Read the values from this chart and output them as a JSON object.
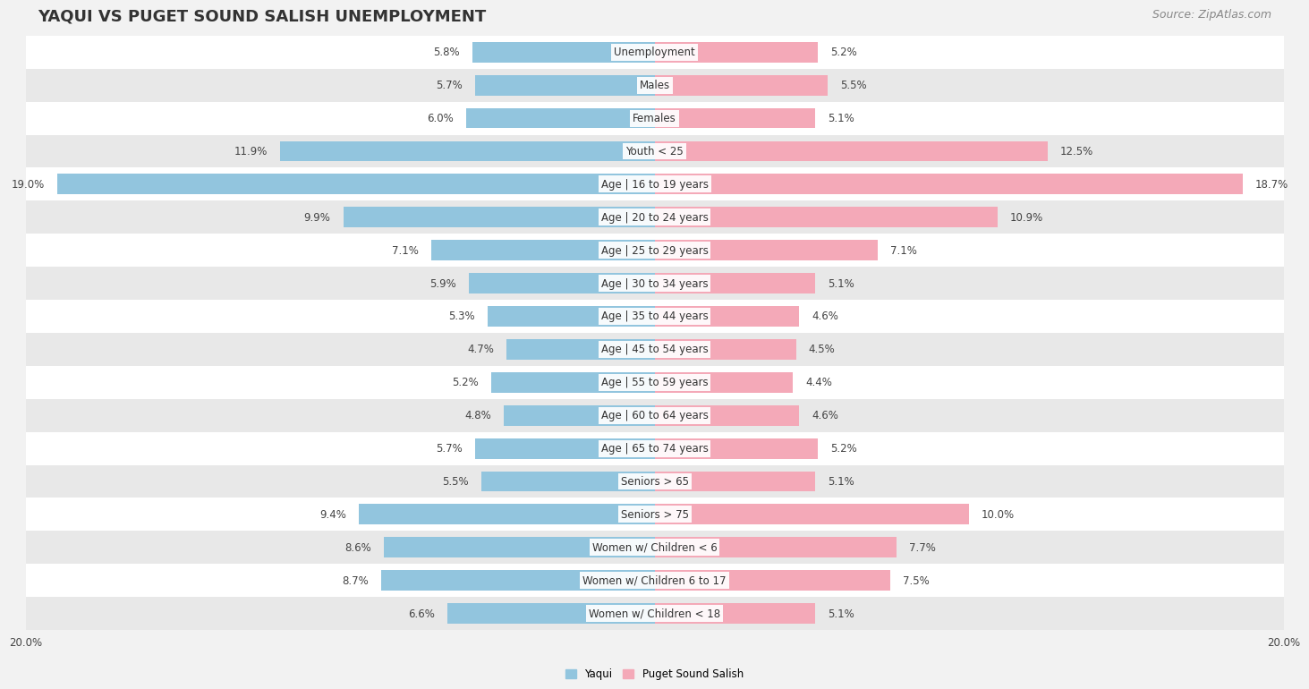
{
  "title": "YAQUI VS PUGET SOUND SALISH UNEMPLOYMENT",
  "source": "Source: ZipAtlas.com",
  "categories": [
    "Unemployment",
    "Males",
    "Females",
    "Youth < 25",
    "Age | 16 to 19 years",
    "Age | 20 to 24 years",
    "Age | 25 to 29 years",
    "Age | 30 to 34 years",
    "Age | 35 to 44 years",
    "Age | 45 to 54 years",
    "Age | 55 to 59 years",
    "Age | 60 to 64 years",
    "Age | 65 to 74 years",
    "Seniors > 65",
    "Seniors > 75",
    "Women w/ Children < 6",
    "Women w/ Children 6 to 17",
    "Women w/ Children < 18"
  ],
  "yaqui": [
    5.8,
    5.7,
    6.0,
    11.9,
    19.0,
    9.9,
    7.1,
    5.9,
    5.3,
    4.7,
    5.2,
    4.8,
    5.7,
    5.5,
    9.4,
    8.6,
    8.7,
    6.6
  ],
  "puget": [
    5.2,
    5.5,
    5.1,
    12.5,
    18.7,
    10.9,
    7.1,
    5.1,
    4.6,
    4.5,
    4.4,
    4.6,
    5.2,
    5.1,
    10.0,
    7.7,
    7.5,
    5.1
  ],
  "yaqui_color": "#92c5de",
  "puget_color": "#f4a9b8",
  "yaqui_label": "Yaqui",
  "puget_label": "Puget Sound Salish",
  "axis_limit": 20.0,
  "bg_color": "#f2f2f2",
  "row_color_even": "#ffffff",
  "row_color_odd": "#e8e8e8",
  "title_fontsize": 13,
  "source_fontsize": 9,
  "label_fontsize": 8.5,
  "value_fontsize": 8.5,
  "tick_fontsize": 8.5
}
